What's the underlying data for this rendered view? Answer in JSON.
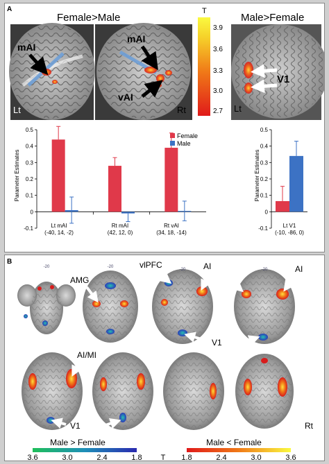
{
  "panel_a": {
    "letter": "A",
    "female_male_title": "Female>Male",
    "male_female_title": "Male>Female",
    "colorbar": {
      "label": "T",
      "ticks": [
        "3.9",
        "3.6",
        "3.3",
        "3.0",
        "2.7"
      ]
    },
    "brain_labels": {
      "mai_left": "mAI",
      "mai_right": "mAI",
      "vai": "vAI",
      "v1": "V1",
      "lt_1": "Lt",
      "rt_1": "Rt",
      "lt_2": "Lt"
    }
  },
  "chart_left": {
    "ylabel": "Parameter Estimates",
    "legend": [
      {
        "name": "Female",
        "color": "#e0394a"
      },
      {
        "name": "Male",
        "color": "#3c72c4"
      }
    ],
    "categories": [
      {
        "line1": "Lt mAI",
        "line2": "(-40, 14, -2)"
      },
      {
        "line1": "Rt mAI",
        "line2": "(42, 12, 0)"
      },
      {
        "line1": "Rt vAI",
        "line2": "(34, 18, -14)"
      }
    ],
    "ticks": [
      "0.5",
      "0.4",
      "0.3",
      "0.2",
      "0.1",
      "0",
      "-0.1"
    ]
  },
  "chart_right": {
    "ylabel": "Parameter Estimates",
    "category": {
      "line1": "Lt V1",
      "line2": "(-10, -86, 0)"
    },
    "ticks": [
      "0.5",
      "0.4",
      "0.3",
      "0.2",
      "0.1",
      "0",
      "-0.1"
    ]
  },
  "chart_data": [
    {
      "type": "bar",
      "categories": [
        "Lt mAI (-40, 14, -2)",
        "Rt mAI (42, 12, 0)",
        "Rt vAI (34, 18, -14)"
      ],
      "series": [
        {
          "name": "Female",
          "values": [
            0.44,
            0.28,
            0.39
          ],
          "errors": [
            0.08,
            0.05,
            0.09
          ]
        },
        {
          "name": "Male",
          "values": [
            0.01,
            -0.01,
            0.005
          ],
          "errors": [
            0.08,
            0.05,
            0.06
          ]
        }
      ],
      "ylabel": "Parameter Estimates",
      "ylim": [
        -0.1,
        0.5
      ],
      "legend": "top-right"
    },
    {
      "type": "bar",
      "categories": [
        "Lt V1 (-10, -86, 0)"
      ],
      "series": [
        {
          "name": "Female",
          "values": [
            0.065
          ],
          "errors": [
            0.09
          ]
        },
        {
          "name": "Male",
          "values": [
            0.34
          ],
          "errors": [
            0.09
          ]
        }
      ],
      "ylabel": "Parameter Estimates",
      "ylim": [
        -0.1,
        0.5
      ]
    }
  ],
  "panel_b": {
    "letter": "B",
    "slice_numbers": [
      "-20",
      "-20",
      "-20",
      "-20"
    ],
    "labels": {
      "amg": "AMG",
      "vlpfc": "vlPFC",
      "ai_1": "AI",
      "ai_2": "AI",
      "ai_mi": "AI/MI",
      "v1_1": "V1",
      "v1_2": "V1",
      "rt": "Rt"
    },
    "cb_male": {
      "title": "Male > Female",
      "ticks": [
        "3.6",
        "3.0",
        "2.4",
        "1.8"
      ]
    },
    "cb_female": {
      "title": "Male < Female",
      "ticks": [
        "1.8",
        "2.4",
        "3.0",
        "3.6"
      ]
    },
    "t_label": "T"
  }
}
